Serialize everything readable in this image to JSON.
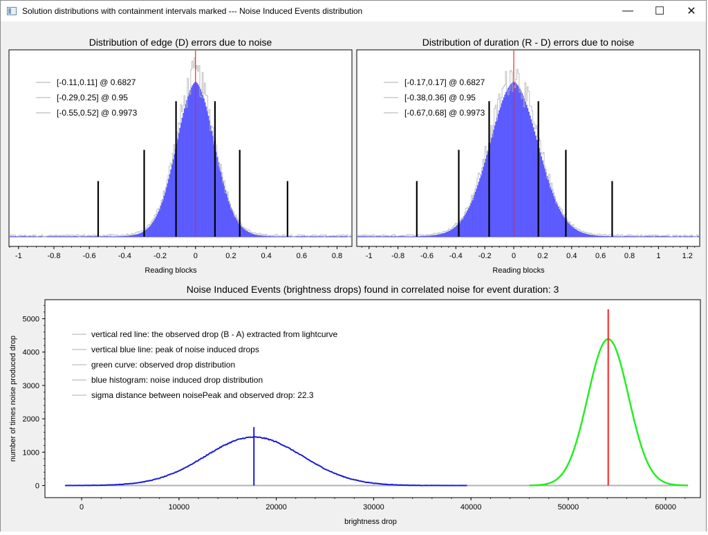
{
  "window": {
    "title": "Solution distributions with containment intervals marked --- Noise Induced Events distribution",
    "minimize_glyph": "—",
    "maximize_glyph": "☐",
    "close_glyph": "✕"
  },
  "colors": {
    "histogram_fill": "#5b5bff",
    "noise_outline": "#b4b4b4",
    "center_line": "#ff2020",
    "interval_marks": "#000000",
    "blue_curve": "#1a1ad6",
    "green_curve": "#22ee22",
    "observed_line": "#ff1a1a"
  },
  "chart_data": [
    {
      "type": "bar",
      "title": "Distribution of edge (D) errors due to noise",
      "xlabel": "Reading blocks",
      "ylabel": "",
      "xlim": [
        -1.05,
        0.88
      ],
      "xticks": [
        -1,
        -0.8,
        -0.6,
        -0.4,
        -0.2,
        0,
        0.2,
        0.4,
        0.6,
        0.8
      ],
      "tick_labels": [
        "-1",
        "-0.8",
        "-0.6",
        "-0.4",
        "-0.2",
        "0",
        "0.2",
        "0.4",
        "0.6",
        "0.8"
      ],
      "distribution": {
        "center": 0,
        "sigma_left": 0.11,
        "sigma_right": 0.11
      },
      "center_line": 0,
      "interval_marks": [
        {
          "x": -0.55,
          "height": 0.32
        },
        {
          "x": -0.29,
          "height": 0.5
        },
        {
          "x": -0.11,
          "height": 0.78
        },
        {
          "x": 0.11,
          "height": 0.78
        },
        {
          "x": 0.25,
          "height": 0.5
        },
        {
          "x": 0.52,
          "height": 0.32
        }
      ],
      "legend": [
        "[-0.11,0.11] @ 0.6827",
        "[-0.29,0.25] @ 0.95",
        "[-0.55,0.52] @ 0.9973"
      ]
    },
    {
      "type": "bar",
      "title": "Distribution of duration (R - D) errors due to noise",
      "xlabel": "Reading blocks",
      "ylabel": "",
      "xlim": [
        -1.08,
        1.28
      ],
      "xticks": [
        -1,
        -0.8,
        -0.6,
        -0.4,
        -0.2,
        0,
        0.2,
        0.4,
        0.6,
        0.8,
        1,
        1.2
      ],
      "tick_labels": [
        "-1",
        "-0.8",
        "-0.6",
        "-0.4",
        "-0.2",
        "0",
        "0.2",
        "0.4",
        "0.6",
        "0.8",
        "1",
        "1.2"
      ],
      "distribution": {
        "center": 0,
        "sigma_left": 0.17,
        "sigma_right": 0.17
      },
      "center_line": 0,
      "interval_marks": [
        {
          "x": -0.67,
          "height": 0.32
        },
        {
          "x": -0.38,
          "height": 0.5
        },
        {
          "x": -0.17,
          "height": 0.78
        },
        {
          "x": 0.17,
          "height": 0.78
        },
        {
          "x": 0.36,
          "height": 0.5
        },
        {
          "x": 0.68,
          "height": 0.32
        }
      ],
      "legend": [
        "[-0.17,0.17] @ 0.6827",
        "[-0.38,0.36] @ 0.95",
        "[-0.67,0.68] @ 0.9973"
      ]
    },
    {
      "type": "line",
      "title": "Noise Induced Events (brightness drops) found in correlated noise for event duration: 3",
      "xlabel": "brightness drop",
      "ylabel": "number of times noise produced drop",
      "xlim": [
        -3700,
        63500
      ],
      "ylim": [
        -300,
        5500
      ],
      "xticks": [
        0,
        10000,
        20000,
        30000,
        40000,
        50000,
        60000
      ],
      "x_tick_labels": [
        "0",
        "10000",
        "20000",
        "30000",
        "40000",
        "50000",
        "60000"
      ],
      "yticks": [
        0,
        1000,
        2000,
        3000,
        4000,
        5000
      ],
      "y_tick_labels": [
        "0",
        "1000",
        "2000",
        "3000",
        "4000",
        "5000"
      ],
      "series": [
        {
          "kind": "histogram",
          "mean": 17700,
          "sigma": 5000,
          "peak": 1450,
          "x_range": [
            -1700,
            39600
          ]
        },
        {
          "kind": "gaussian",
          "mean": 54100,
          "sigma": 2100,
          "peak": 4390,
          "x_range": [
            46000,
            62300
          ]
        }
      ],
      "noise_peak_line": {
        "x": 17700,
        "ymax": 1750
      },
      "observed_drop_line": {
        "x": 54100,
        "ymax": 5280
      },
      "legend": [
        "vertical red line: the observed drop (B - A) extracted from lightcurve",
        "vertical blue line: peak of noise induced drops",
        "green curve: observed drop distribution",
        "blue histogram: noise induced drop distribution",
        "sigma distance between noisePeak and observed drop: 22.3"
      ]
    }
  ]
}
